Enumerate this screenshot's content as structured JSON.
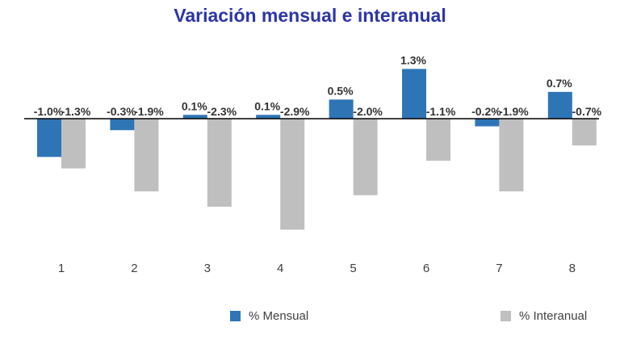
{
  "chart_data": {
    "type": "bar",
    "title": "Variación mensual e interanual",
    "categories": [
      "1",
      "2",
      "3",
      "4",
      "5",
      "6",
      "7",
      "8"
    ],
    "series": [
      {
        "name": "% Mensual",
        "color": "#2e75b6",
        "values": [
          -1.0,
          -0.3,
          0.1,
          0.1,
          0.5,
          1.3,
          -0.2,
          0.7
        ],
        "labels": [
          "-1.0%",
          "-0.3%",
          "0.1%",
          "0.1%",
          "0.5%",
          "1.3%",
          "-0.2%",
          "0.7%"
        ]
      },
      {
        "name": "% Interanual",
        "color": "#bfbfbf",
        "values": [
          -1.3,
          -1.9,
          -2.3,
          -2.9,
          -2.0,
          -1.1,
          -1.9,
          -0.7
        ],
        "labels": [
          "-1.3%",
          "-1.9%",
          "-2.3%",
          "-2.9%",
          "-2.0%",
          "-1.1%",
          "-1.9%",
          "-0.7%"
        ]
      }
    ],
    "grid": false,
    "legend": "bottom"
  }
}
